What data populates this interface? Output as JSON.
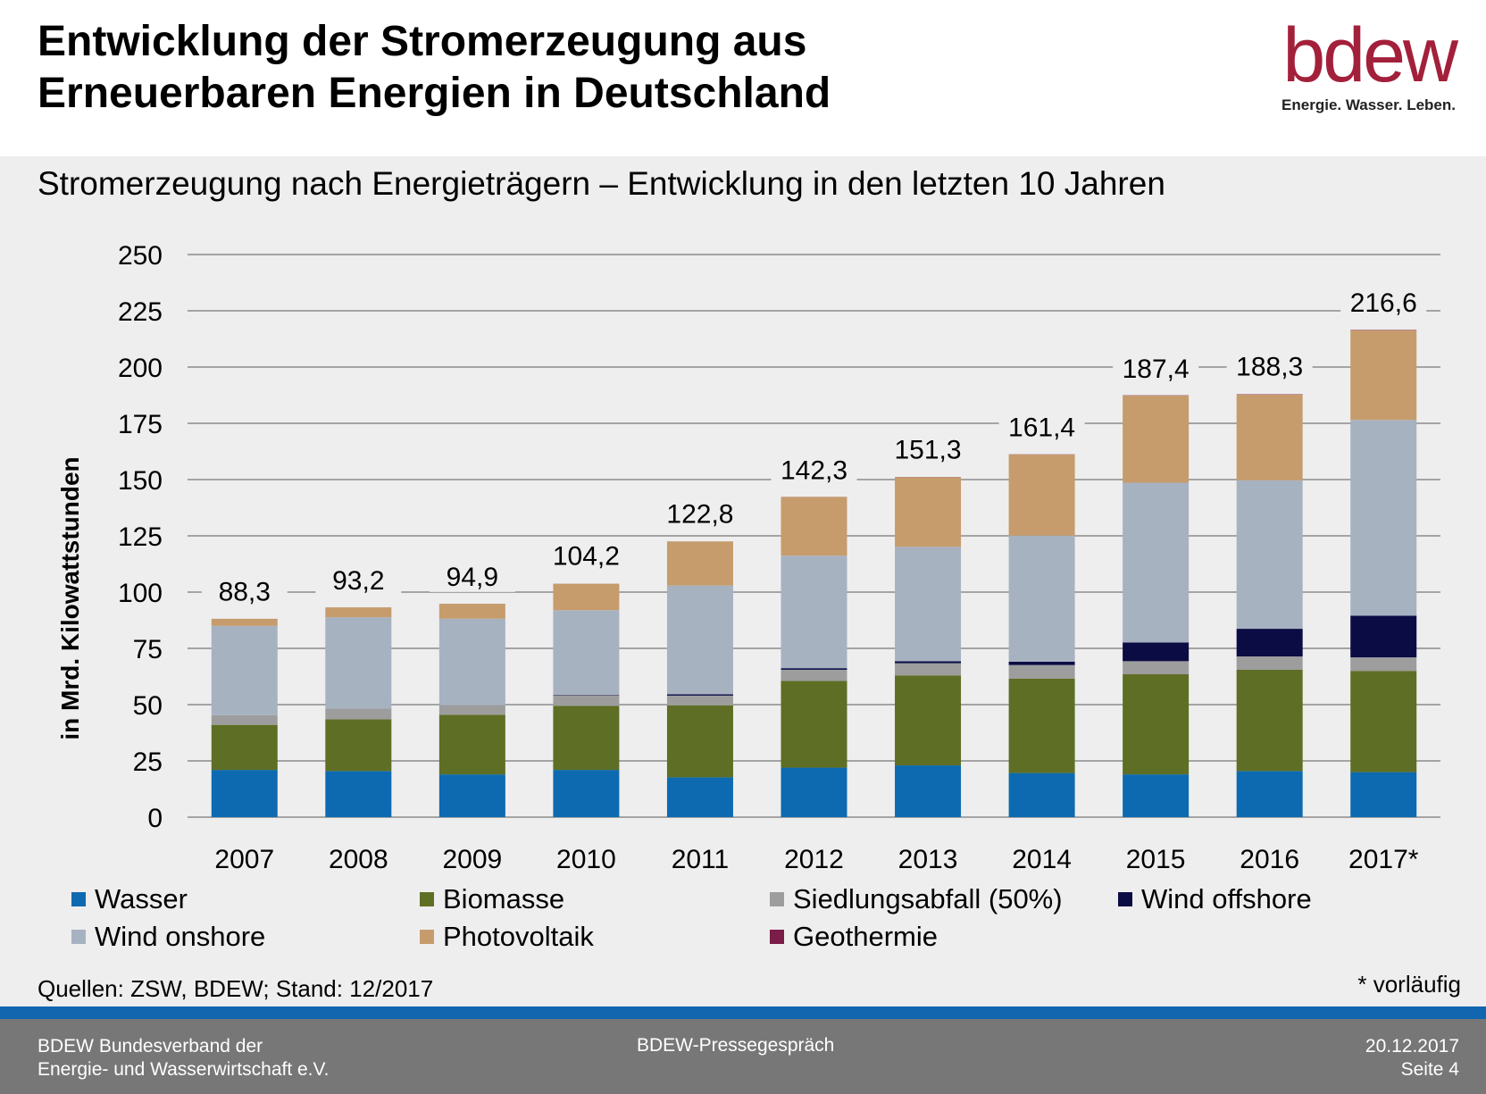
{
  "header": {
    "title_line1": "Entwicklung der Stromerzeugung aus",
    "title_line2": "Erneuerbaren Energien in Deutschland",
    "logo_text": "bdew",
    "logo_tagline": "Energie. Wasser. Leben."
  },
  "chart_data": {
    "type": "bar",
    "stacked": true,
    "title": "Stromerzeugung nach Energieträgern – Entwicklung in den letzten 10 Jahren",
    "ylabel": "in Mrd. Kilowattstunden",
    "xlabel": "",
    "ylim": [
      0,
      250
    ],
    "yticks": [
      0,
      25,
      50,
      75,
      100,
      125,
      150,
      175,
      200,
      225,
      250
    ],
    "grid": true,
    "legend_position": "bottom",
    "categories": [
      "2007",
      "2008",
      "2009",
      "2010",
      "2011",
      "2012",
      "2013",
      "2014",
      "2015",
      "2016",
      "2017*"
    ],
    "totals": [
      "88,3",
      "93,2",
      "94,9",
      "104,2",
      "122,8",
      "142,3",
      "151,3",
      "161,4",
      "187,4",
      "188,3",
      "216,6"
    ],
    "total_values": [
      88.3,
      93.2,
      94.9,
      104.2,
      122.8,
      142.3,
      151.3,
      161.4,
      187.4,
      188.3,
      216.6
    ],
    "series": [
      {
        "name": "Wasser",
        "color": "#0d6ab0",
        "values": [
          21,
          20.5,
          19,
          21,
          17.7,
          22,
          23,
          19.6,
          19,
          20.5,
          20
        ]
      },
      {
        "name": "Biomasse",
        "color": "#5e6e24",
        "values": [
          20,
          23,
          26.5,
          28.5,
          32,
          38.5,
          40,
          42,
          44.5,
          45,
          45
        ]
      },
      {
        "name": "Siedlungsabfall (50%)",
        "color": "#9d9d9d",
        "values": [
          4.3,
          4.7,
          4.3,
          4.7,
          4.3,
          5,
          5.4,
          6,
          5.8,
          5.9,
          6
        ]
      },
      {
        "name": "Wind offshore",
        "color": "#0c0c44",
        "values": [
          0,
          0,
          0,
          0.2,
          0.6,
          0.7,
          0.9,
          1.5,
          8.3,
          12.3,
          18.5
        ]
      },
      {
        "name": "Wind onshore",
        "color": "#a7b2c1",
        "values": [
          39.7,
          40.6,
          38.4,
          37.6,
          48.3,
          50,
          50.8,
          56,
          71,
          66,
          87
        ]
      },
      {
        "name": "Photovoltaik",
        "color": "#c69c6d",
        "values": [
          3.1,
          4.4,
          6.6,
          11.7,
          19.6,
          26.1,
          31,
          36,
          38.7,
          38,
          39.9
        ]
      },
      {
        "name": "Geothermie",
        "color": "#7a1d48",
        "values": [
          0.02,
          0.02,
          0.02,
          0.03,
          0.02,
          0.03,
          0.08,
          0.1,
          0.13,
          0.18,
          0.16
        ]
      }
    ]
  },
  "legend": [
    {
      "label": "Wasser",
      "color": "#0d6ab0"
    },
    {
      "label": "Biomasse",
      "color": "#5e6e24"
    },
    {
      "label": "Siedlungsabfall (50%)",
      "color": "#9d9d9d"
    },
    {
      "label": "Wind offshore",
      "color": "#0c0c44"
    },
    {
      "label": "Wind onshore",
      "color": "#a7b2c1"
    },
    {
      "label": "Photovoltaik",
      "color": "#c69c6d"
    },
    {
      "label": "Geothermie",
      "color": "#7a1d48"
    }
  ],
  "sources": "Quellen: ZSW, BDEW; Stand: 12/2017",
  "note": "* vorläufig",
  "footer": {
    "org_line1": "BDEW Bundesverband der",
    "org_line2": "Energie- und Wasserwirtschaft e.V.",
    "event": "BDEW-Pressegespräch",
    "date": "20.12.2017",
    "page": "Seite 4"
  }
}
